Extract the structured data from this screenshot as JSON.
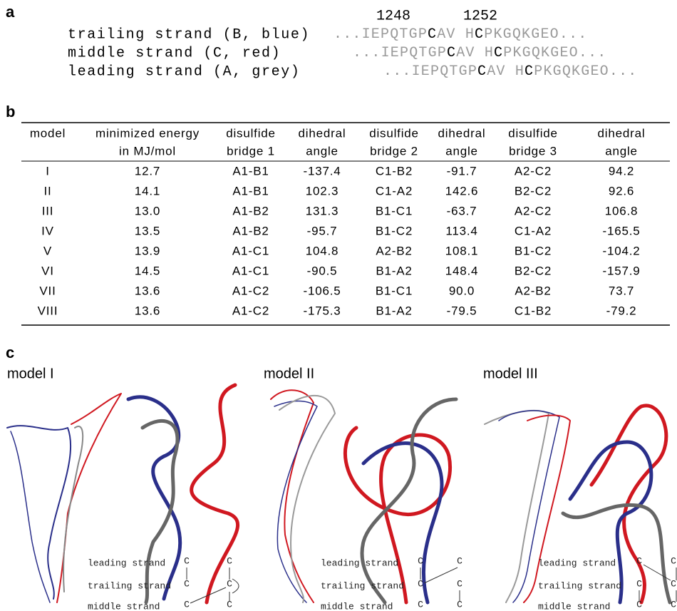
{
  "panels": {
    "a": {
      "label": "a",
      "positions": [
        "1248",
        "1252"
      ],
      "rows": [
        {
          "name": "trailing strand (B, blue)",
          "sequence": [
            "...IEPQTGP",
            "C",
            "AV H",
            "C",
            "PKGQKGEO..."
          ]
        },
        {
          "name": "middle strand (C, red)",
          "sequence": [
            "...IEPQTGP",
            "C",
            "AV H",
            "C",
            "PKGQKGEO..."
          ]
        },
        {
          "name": "leading strand (A, grey)",
          "sequence": [
            "...IEPQTGP",
            "C",
            "AV H",
            "C",
            "PKGQKGEO..."
          ]
        }
      ]
    },
    "b": {
      "label": "b",
      "columns": [
        {
          "lines": [
            "model"
          ]
        },
        {
          "lines": [
            "minimized energy",
            "in MJ/mol"
          ]
        },
        {
          "lines": [
            "disulfide",
            "bridge 1"
          ]
        },
        {
          "lines": [
            "dihedral",
            "angle"
          ]
        },
        {
          "lines": [
            "disulfide",
            "bridge 2"
          ]
        },
        {
          "lines": [
            "dihedral",
            "angle"
          ]
        },
        {
          "lines": [
            "disulfide",
            "bridge 3"
          ]
        },
        {
          "lines": [
            "dihedral",
            "angle"
          ]
        }
      ],
      "rows": [
        [
          "I",
          "12.7",
          "A1-B1",
          "-137.4",
          "C1-B2",
          "-91.7",
          "A2-C2",
          "94.2"
        ],
        [
          "II",
          "14.1",
          "A1-B1",
          "102.3",
          "C1-A2",
          "142.6",
          "B2-C2",
          "92.6"
        ],
        [
          "III",
          "13.0",
          "A1-B2",
          "131.3",
          "B1-C1",
          "-63.7",
          "A2-C2",
          "106.8"
        ],
        [
          "IV",
          "13.5",
          "A1-B2",
          "-95.7",
          "B1-C2",
          "113.4",
          "C1-A2",
          "-165.5"
        ],
        [
          "V",
          "13.9",
          "A1-C1",
          "104.8",
          "A2-B2",
          "108.1",
          "B1-C2",
          "-104.2"
        ],
        [
          "VI",
          "14.5",
          "A1-C1",
          "-90.5",
          "B1-A2",
          "148.4",
          "B2-C2",
          "-157.9"
        ],
        [
          "VII",
          "13.6",
          "A1-C2",
          "-106.5",
          "B1-C1",
          "90.0",
          "A2-B2",
          "73.7"
        ],
        [
          "VIII",
          "13.6",
          "A1-C2",
          "-175.3",
          "B1-A2",
          "-79.5",
          "C1-B2",
          "-79.2"
        ]
      ]
    },
    "c": {
      "label": "c",
      "models": [
        {
          "title": "model I"
        },
        {
          "title": "model II"
        },
        {
          "title": "model III"
        }
      ],
      "strand_labels": [
        "leading strand",
        "trailing strand",
        "middle strand"
      ],
      "residue": "C"
    }
  }
}
